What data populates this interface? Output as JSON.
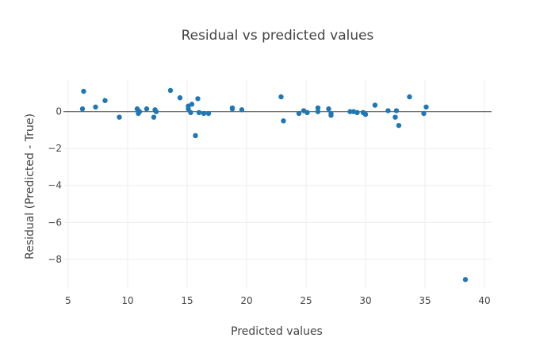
{
  "chart_data": {
    "type": "scatter",
    "title": "Residual vs predicted values",
    "xlabel": "Predicted values",
    "ylabel": "Residual (Predicted - True)",
    "xlim": [
      4.6,
      40.6
    ],
    "ylim": [
      -9.6,
      1.75
    ],
    "xticks": [
      5,
      10,
      15,
      20,
      25,
      30,
      35,
      40
    ],
    "yticks": [
      0,
      -2,
      -4,
      -6,
      -8
    ],
    "grid": true,
    "zero_line": true,
    "marker_color": "#1f77b4",
    "points": [
      {
        "x": 6.2,
        "y": 0.15
      },
      {
        "x": 6.3,
        "y": 1.1
      },
      {
        "x": 7.3,
        "y": 0.25
      },
      {
        "x": 8.1,
        "y": 0.6
      },
      {
        "x": 9.3,
        "y": -0.3
      },
      {
        "x": 10.8,
        "y": 0.15
      },
      {
        "x": 10.9,
        "y": 0.05
      },
      {
        "x": 10.9,
        "y": -0.1
      },
      {
        "x": 11.0,
        "y": 0.0
      },
      {
        "x": 11.6,
        "y": 0.15
      },
      {
        "x": 12.2,
        "y": -0.3
      },
      {
        "x": 12.3,
        "y": 0.1
      },
      {
        "x": 12.4,
        "y": 0.0
      },
      {
        "x": 13.6,
        "y": 1.15
      },
      {
        "x": 14.4,
        "y": 0.75
      },
      {
        "x": 15.1,
        "y": 0.15
      },
      {
        "x": 15.1,
        "y": 0.3
      },
      {
        "x": 15.3,
        "y": -0.05
      },
      {
        "x": 15.4,
        "y": 0.4
      },
      {
        "x": 15.7,
        "y": -1.3
      },
      {
        "x": 15.9,
        "y": 0.7
      },
      {
        "x": 16.0,
        "y": -0.05
      },
      {
        "x": 16.4,
        "y": -0.1
      },
      {
        "x": 16.8,
        "y": -0.1
      },
      {
        "x": 18.8,
        "y": 0.15
      },
      {
        "x": 18.8,
        "y": 0.2
      },
      {
        "x": 19.6,
        "y": 0.1
      },
      {
        "x": 22.9,
        "y": 0.8
      },
      {
        "x": 23.1,
        "y": -0.5
      },
      {
        "x": 24.4,
        "y": -0.1
      },
      {
        "x": 24.8,
        "y": 0.05
      },
      {
        "x": 25.1,
        "y": -0.05
      },
      {
        "x": 26.0,
        "y": 0.2
      },
      {
        "x": 26.0,
        "y": 0.0
      },
      {
        "x": 26.9,
        "y": 0.15
      },
      {
        "x": 27.1,
        "y": -0.1
      },
      {
        "x": 27.1,
        "y": -0.2
      },
      {
        "x": 28.7,
        "y": 0.0
      },
      {
        "x": 29.0,
        "y": 0.0
      },
      {
        "x": 29.3,
        "y": -0.05
      },
      {
        "x": 29.8,
        "y": -0.05
      },
      {
        "x": 30.0,
        "y": -0.15
      },
      {
        "x": 30.8,
        "y": 0.35
      },
      {
        "x": 31.9,
        "y": 0.05
      },
      {
        "x": 32.5,
        "y": -0.3
      },
      {
        "x": 32.6,
        "y": 0.05
      },
      {
        "x": 32.8,
        "y": -0.75
      },
      {
        "x": 33.7,
        "y": 0.8
      },
      {
        "x": 34.9,
        "y": -0.1
      },
      {
        "x": 35.1,
        "y": 0.25
      },
      {
        "x": 38.4,
        "y": -9.1
      }
    ]
  }
}
